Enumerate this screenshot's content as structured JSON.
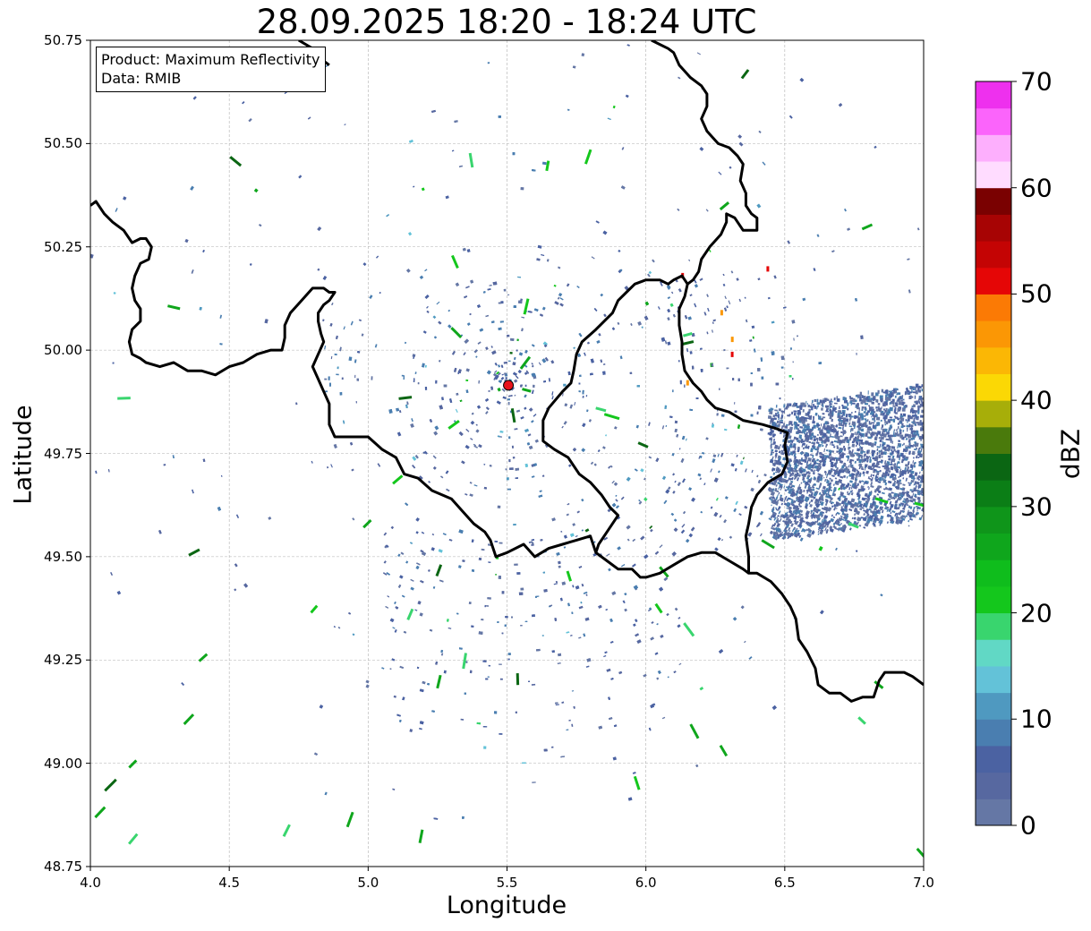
{
  "title": "28.09.2025 18:20 - 18:24 UTC",
  "info_box": {
    "product": "Product: Maximum Reflectivity",
    "source": "Data: RMIB"
  },
  "axes": {
    "xlabel": "Longitude",
    "ylabel": "Latitude",
    "xlim": [
      4.0,
      7.0
    ],
    "ylim": [
      48.75,
      50.75
    ],
    "xticks": [
      "4.0",
      "4.5",
      "5.0",
      "5.5",
      "6.0",
      "6.5",
      "7.0"
    ],
    "yticks": [
      "50.75",
      "50.50",
      "50.25",
      "50.00",
      "49.75",
      "49.50",
      "49.25",
      "49.00",
      "48.75"
    ],
    "grid": true
  },
  "radar_site": {
    "lon": 5.505,
    "lat": 49.915,
    "color": "#e8141c"
  },
  "colorbar": {
    "label": "dBZ",
    "ticks": [
      "0",
      "10",
      "20",
      "30",
      "40",
      "50",
      "60",
      "70"
    ],
    "min": 0,
    "max": 70,
    "step": 2.5,
    "colors": [
      "#6577a5",
      "#5768a0",
      "#4b62a2",
      "#4a7eb0",
      "#4f99c0",
      "#63c2d8",
      "#61d8c5",
      "#39d56e",
      "#14c71c",
      "#0fbd1c",
      "#0fa61c",
      "#0f951a",
      "#0b7e16",
      "#0b6613",
      "#4a7a0c",
      "#a7ae09",
      "#fbd805",
      "#fbb705",
      "#fb9705",
      "#fb7a05",
      "#e50606",
      "#c40404",
      "#a70404",
      "#7a0101",
      "#ffdcff",
      "#fdaffd",
      "#fb64fb",
      "#ee30ee"
    ]
  },
  "borders": [
    [
      [
        4.0,
        50.35
      ],
      [
        4.02,
        50.36
      ],
      [
        4.05,
        50.33
      ],
      [
        4.08,
        50.31
      ],
      [
        4.12,
        50.29
      ],
      [
        4.15,
        50.26
      ],
      [
        4.18,
        50.27
      ],
      [
        4.2,
        50.27
      ],
      [
        4.22,
        50.25
      ],
      [
        4.21,
        50.22
      ],
      [
        4.18,
        50.21
      ],
      [
        4.16,
        50.18
      ],
      [
        4.15,
        50.15
      ],
      [
        4.16,
        50.12
      ],
      [
        4.18,
        50.1
      ],
      [
        4.18,
        50.07
      ],
      [
        4.15,
        50.05
      ],
      [
        4.14,
        50.02
      ],
      [
        4.15,
        49.99
      ],
      [
        4.18,
        49.98
      ],
      [
        4.2,
        49.97
      ],
      [
        4.25,
        49.96
      ],
      [
        4.3,
        49.97
      ],
      [
        4.35,
        49.95
      ],
      [
        4.4,
        49.95
      ],
      [
        4.45,
        49.94
      ],
      [
        4.5,
        49.96
      ],
      [
        4.55,
        49.97
      ],
      [
        4.6,
        49.99
      ],
      [
        4.65,
        50.0
      ],
      [
        4.69,
        50.0
      ],
      [
        4.7,
        50.03
      ],
      [
        4.7,
        50.06
      ],
      [
        4.72,
        50.09
      ],
      [
        4.76,
        50.12
      ],
      [
        4.8,
        50.15
      ],
      [
        4.84,
        50.15
      ],
      [
        4.86,
        50.14
      ],
      [
        4.88,
        50.14
      ],
      [
        4.86,
        50.12
      ],
      [
        4.84,
        50.11
      ],
      [
        4.82,
        50.09
      ],
      [
        4.82,
        50.07
      ],
      [
        4.83,
        50.04
      ],
      [
        4.84,
        50.02
      ],
      [
        4.82,
        49.99
      ],
      [
        4.8,
        49.96
      ],
      [
        4.82,
        49.93
      ],
      [
        4.84,
        49.9
      ],
      [
        4.86,
        49.87
      ],
      [
        4.86,
        49.82
      ],
      [
        4.88,
        49.79
      ],
      [
        4.93,
        49.79
      ],
      [
        5.0,
        49.79
      ],
      [
        5.05,
        49.76
      ],
      [
        5.1,
        49.74
      ],
      [
        5.13,
        49.7
      ],
      [
        5.18,
        49.69
      ],
      [
        5.23,
        49.66
      ],
      [
        5.3,
        49.64
      ],
      [
        5.34,
        49.61
      ],
      [
        5.38,
        49.58
      ],
      [
        5.42,
        49.56
      ],
      [
        5.44,
        49.54
      ],
      [
        5.46,
        49.5
      ],
      [
        5.5,
        49.51
      ],
      [
        5.56,
        49.53
      ],
      [
        5.6,
        49.5
      ],
      [
        5.65,
        49.52
      ],
      [
        5.7,
        49.53
      ],
      [
        5.75,
        49.54
      ],
      [
        5.8,
        49.55
      ],
      [
        5.82,
        49.51
      ],
      [
        5.86,
        49.49
      ],
      [
        5.9,
        49.47
      ],
      [
        5.95,
        49.47
      ],
      [
        5.98,
        49.45
      ],
      [
        6.0,
        49.45
      ],
      [
        6.05,
        49.46
      ],
      [
        6.1,
        49.48
      ],
      [
        6.15,
        49.5
      ],
      [
        6.2,
        49.51
      ],
      [
        6.25,
        49.51
      ],
      [
        6.3,
        49.49
      ],
      [
        6.35,
        49.47
      ],
      [
        6.37,
        49.46
      ],
      [
        6.4,
        49.46
      ],
      [
        6.45,
        49.44
      ],
      [
        6.49,
        49.41
      ],
      [
        6.52,
        49.38
      ],
      [
        6.54,
        49.35
      ],
      [
        6.55,
        49.3
      ],
      [
        6.58,
        49.27
      ],
      [
        6.61,
        49.23
      ],
      [
        6.62,
        49.19
      ],
      [
        6.66,
        49.17
      ],
      [
        6.7,
        49.17
      ],
      [
        6.74,
        49.15
      ],
      [
        6.78,
        49.16
      ],
      [
        6.82,
        49.16
      ],
      [
        6.84,
        49.2
      ],
      [
        6.86,
        49.22
      ],
      [
        6.9,
        49.22
      ],
      [
        6.93,
        49.22
      ],
      [
        6.96,
        49.21
      ],
      [
        7.0,
        49.19
      ]
    ],
    [
      [
        4.75,
        50.75
      ],
      [
        4.8,
        50.73
      ],
      [
        4.82,
        50.71
      ],
      [
        4.84,
        50.7
      ],
      [
        4.86,
        50.69
      ]
    ],
    [
      [
        6.02,
        50.75
      ],
      [
        6.05,
        50.74
      ],
      [
        6.08,
        50.73
      ],
      [
        6.1,
        50.72
      ],
      [
        6.12,
        50.69
      ],
      [
        6.16,
        50.66
      ],
      [
        6.2,
        50.64
      ],
      [
        6.22,
        50.62
      ],
      [
        6.22,
        50.59
      ],
      [
        6.2,
        50.56
      ],
      [
        6.22,
        50.53
      ],
      [
        6.26,
        50.5
      ],
      [
        6.3,
        50.49
      ],
      [
        6.33,
        50.47
      ],
      [
        6.35,
        50.45
      ],
      [
        6.34,
        50.41
      ],
      [
        6.36,
        50.38
      ],
      [
        6.36,
        50.35
      ],
      [
        6.38,
        50.33
      ],
      [
        6.4,
        50.32
      ],
      [
        6.4,
        50.29
      ],
      [
        6.35,
        50.29
      ],
      [
        6.32,
        50.32
      ],
      [
        6.29,
        50.33
      ],
      [
        6.29,
        50.31
      ],
      [
        6.27,
        50.28
      ],
      [
        6.23,
        50.25
      ],
      [
        6.2,
        50.22
      ],
      [
        6.19,
        50.19
      ],
      [
        6.17,
        50.17
      ],
      [
        6.15,
        50.16
      ],
      [
        6.13,
        50.18
      ],
      [
        6.1,
        50.17
      ],
      [
        6.08,
        50.16
      ],
      [
        6.05,
        50.17
      ],
      [
        6.0,
        50.17
      ],
      [
        5.96,
        50.16
      ],
      [
        5.93,
        50.14
      ],
      [
        5.9,
        50.12
      ],
      [
        5.88,
        50.09
      ],
      [
        5.85,
        50.07
      ],
      [
        5.82,
        50.05
      ],
      [
        5.77,
        50.02
      ],
      [
        5.75,
        49.99
      ],
      [
        5.74,
        49.95
      ],
      [
        5.73,
        49.92
      ],
      [
        5.7,
        49.9
      ],
      [
        5.65,
        49.86
      ],
      [
        5.63,
        49.83
      ],
      [
        5.63,
        49.78
      ],
      [
        5.67,
        49.76
      ],
      [
        5.72,
        49.74
      ],
      [
        5.76,
        49.7
      ],
      [
        5.8,
        49.68
      ],
      [
        5.84,
        49.65
      ],
      [
        5.87,
        49.62
      ],
      [
        5.9,
        49.6
      ],
      [
        5.86,
        49.56
      ],
      [
        5.83,
        49.53
      ],
      [
        5.82,
        49.51
      ]
    ],
    [
      [
        6.15,
        50.16
      ],
      [
        6.14,
        50.13
      ],
      [
        6.12,
        50.1
      ],
      [
        6.12,
        50.06
      ],
      [
        6.13,
        50.02
      ],
      [
        6.13,
        49.99
      ],
      [
        6.14,
        49.95
      ],
      [
        6.17,
        49.92
      ],
      [
        6.2,
        49.9
      ],
      [
        6.22,
        49.88
      ],
      [
        6.25,
        49.86
      ],
      [
        6.3,
        49.85
      ],
      [
        6.35,
        49.83
      ],
      [
        6.42,
        49.82
      ],
      [
        6.47,
        49.81
      ],
      [
        6.51,
        49.8
      ],
      [
        6.5,
        49.77
      ],
      [
        6.51,
        49.73
      ],
      [
        6.49,
        49.7
      ],
      [
        6.44,
        49.68
      ],
      [
        6.4,
        49.65
      ],
      [
        6.38,
        49.62
      ],
      [
        6.37,
        49.58
      ],
      [
        6.36,
        49.55
      ],
      [
        6.37,
        49.5
      ],
      [
        6.37,
        49.46
      ]
    ]
  ],
  "echo_colors": {
    "light": [
      "#6577a5",
      "#5768a0",
      "#4b62a2",
      "#4a7eb0"
    ],
    "mid": [
      "#4f99c0",
      "#63c2d8"
    ],
    "green": [
      "#39d56e",
      "#14c71c",
      "#0fa61c",
      "#0b6613"
    ],
    "hot": [
      "#fb9705",
      "#e50606"
    ]
  }
}
